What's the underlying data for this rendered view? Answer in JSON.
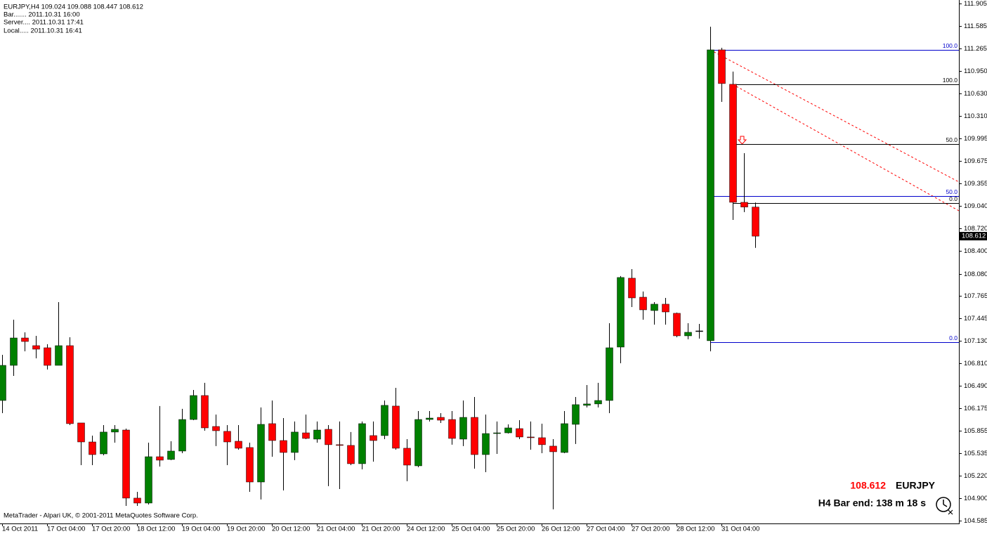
{
  "chart_data": {
    "type": "candlestick",
    "header": "EURJPY,H4  109.024 109.088 108.447 108.612",
    "info_lines": [
      "Bar....... 2011.10.31 16:00",
      "Server.... 2011.10.31 17:41",
      "Local..... 2011.10.31 16:41"
    ],
    "copyright": "MetaTrader - Alpari UK, © 2001-2011 MetaQuotes Software Corp.",
    "bid_price": 108.612,
    "symbol": "EURJPY",
    "bar_end": "H4 Bar end: 138 m 18 s",
    "current_price": 108.612,
    "up_color": "#008000",
    "down_color": "#ff0000",
    "doji_color": "#000000",
    "categories": [
      "14 Oct 2011",
      null,
      null,
      null,
      "17 Oct 04:00",
      null,
      null,
      null,
      "17 Oct 20:00",
      null,
      null,
      null,
      "18 Oct 12:00",
      null,
      null,
      null,
      "19 Oct 04:00",
      null,
      null,
      null,
      "19 Oct 20:00",
      null,
      null,
      null,
      "20 Oct 12:00",
      null,
      null,
      null,
      "21 Oct 04:00",
      null,
      null,
      null,
      "21 Oct 20:00",
      null,
      null,
      null,
      "24 Oct 12:00",
      null,
      null,
      null,
      "25 Oct 04:00",
      null,
      null,
      null,
      "25 Oct 20:00",
      null,
      null,
      null,
      "26 Oct 12:00",
      null,
      null,
      null,
      "27 Oct 04:00",
      null,
      null,
      null,
      "27 Oct 20:00",
      null,
      null,
      null,
      "28 Oct 12:00",
      null,
      null,
      null,
      "31 Oct 04:00",
      null,
      null,
      null
    ],
    "open": [
      106.286,
      106.783,
      107.171,
      107.062,
      107.032,
      106.783,
      107.062,
      105.968,
      105.699,
      105.53,
      105.839,
      105.868,
      104.904,
      104.834,
      105.49,
      105.451,
      105.57,
      106.017,
      106.356,
      105.918,
      105.849,
      105.709,
      105.62,
      105.132,
      105.958,
      105.719,
      105.55,
      105.828,
      105.739,
      105.878,
      105.66,
      105.65,
      105.391,
      105.789,
      105.789,
      106.207,
      105.61,
      105.361,
      106.017,
      106.047,
      106.017,
      105.739,
      106.047,
      105.52,
      105.818,
      105.828,
      105.888,
      105.769,
      105.759,
      105.64,
      105.55,
      105.948,
      106.217,
      106.237,
      106.286,
      107.042,
      108.017,
      107.748,
      107.559,
      107.649,
      107.52,
      107.201,
      107.271,
      107.132,
      111.249,
      110.762,
      109.091,
      109.024
    ],
    "high": [
      106.932,
      107.43,
      107.251,
      107.201,
      107.082,
      107.678,
      107.181,
      105.968,
      105.789,
      105.938,
      105.938,
      105.888,
      104.993,
      105.689,
      106.207,
      105.709,
      106.167,
      106.435,
      106.535,
      106.087,
      105.938,
      105.938,
      105.689,
      106.187,
      106.286,
      106.037,
      105.988,
      106.087,
      105.988,
      105.938,
      105.988,
      105.839,
      105.988,
      105.988,
      106.286,
      106.465,
      105.739,
      106.137,
      106.137,
      106.107,
      106.137,
      106.286,
      106.336,
      106.087,
      105.988,
      105.948,
      106.007,
      105.988,
      105.958,
      105.739,
      106.137,
      106.336,
      106.505,
      106.535,
      107.38,
      108.047,
      108.146,
      107.828,
      107.678,
      107.738,
      107.53,
      107.38,
      107.37,
      111.577,
      111.279,
      110.941,
      109.787,
      109.088
    ],
    "low": [
      106.107,
      106.634,
      106.982,
      106.883,
      106.724,
      106.783,
      105.938,
      105.371,
      105.371,
      105.51,
      105.689,
      104.794,
      104.794,
      104.814,
      105.351,
      105.441,
      105.54,
      106.007,
      105.858,
      105.64,
      105.371,
      105.59,
      104.993,
      104.884,
      105.49,
      105.013,
      105.441,
      105.739,
      105.689,
      105.073,
      105.033,
      105.371,
      105.311,
      105.421,
      105.739,
      105.59,
      105.143,
      105.341,
      105.988,
      105.968,
      105.66,
      105.64,
      105.321,
      105.271,
      105.53,
      105.818,
      105.739,
      105.59,
      105.54,
      104.745,
      105.54,
      105.67,
      106.187,
      106.187,
      106.107,
      106.813,
      107.609,
      107.43,
      107.36,
      107.36,
      107.181,
      107.152,
      107.162,
      106.982,
      110.513,
      108.842,
      108.952,
      108.447
    ],
    "close": [
      106.783,
      107.171,
      107.121,
      107.012,
      106.783,
      107.062,
      105.958,
      105.699,
      105.52,
      105.839,
      105.878,
      104.904,
      104.834,
      105.49,
      105.441,
      105.57,
      106.017,
      106.356,
      105.898,
      105.858,
      105.699,
      105.61,
      105.132,
      105.948,
      105.719,
      105.55,
      105.839,
      105.749,
      105.868,
      105.66,
      105.65,
      105.391,
      105.958,
      105.719,
      106.217,
      105.61,
      105.371,
      106.017,
      106.037,
      106.007,
      105.749,
      106.047,
      105.52,
      105.818,
      105.828,
      105.898,
      105.769,
      105.759,
      105.66,
      105.56,
      105.958,
      106.227,
      106.237,
      106.286,
      107.032,
      108.027,
      107.738,
      107.569,
      107.649,
      107.539,
      107.201,
      107.251,
      107.271,
      111.249,
      110.772,
      109.091,
      109.024,
      108.612
    ],
    "ylim": [
      104.585,
      111.905
    ],
    "yticks": [
      111.905,
      111.585,
      {
        "value": 111.265,
        "label": "111.265"
      },
      {
        "value": 110.95,
        "label": "110.950"
      },
      {
        "value": 110.63,
        "label": "110.630"
      },
      {
        "value": 110.31,
        "label": "110.310"
      },
      109.995,
      109.675,
      109.355,
      {
        "value": 109.04,
        "label": "109.040"
      },
      {
        "value": 108.72,
        "label": "108.720"
      },
      {
        "value": 108.4,
        "label": "108.400"
      },
      {
        "value": 108.08,
        "label": "108.080"
      },
      107.765,
      107.445,
      {
        "value": 107.13,
        "label": "107.130"
      },
      {
        "value": 106.81,
        "label": "106.810"
      },
      {
        "value": 106.49,
        "label": "106.490"
      },
      106.175,
      105.855,
      105.535,
      {
        "value": 105.22,
        "label": "105.220"
      },
      {
        "value": 104.9,
        "label": "104.900"
      },
      104.585
    ],
    "fibo": [
      {
        "color": "#0000cc",
        "start_index": 63,
        "levels": [
          {
            "label": "100.0",
            "price": 111.249
          },
          {
            "label": "50.0",
            "price": 109.18
          },
          {
            "label": "0.0",
            "price": 107.11
          }
        ]
      },
      {
        "color": "#000000",
        "start_index": 65,
        "levels": [
          {
            "label": "100.0",
            "price": 110.762
          },
          {
            "label": "50.0",
            "price": 109.92
          },
          {
            "label": "0.0",
            "price": 109.08
          }
        ]
      }
    ]
  }
}
